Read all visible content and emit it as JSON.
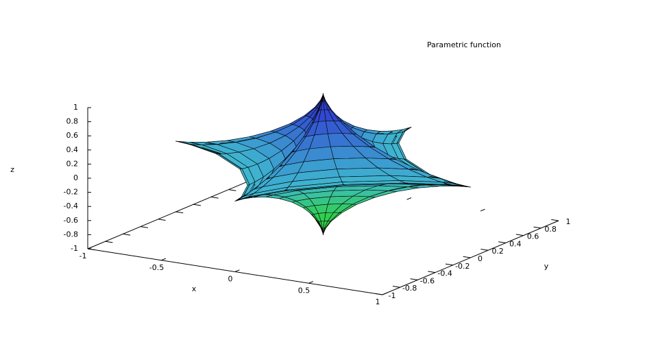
{
  "chart_data": {
    "type": "surface",
    "title": "Parametric function",
    "xlabel": "x",
    "ylabel": "y",
    "zlabel": "z",
    "xlim": [
      -1,
      1
    ],
    "xticks": [
      -1,
      -0.5,
      0,
      0.5,
      1
    ],
    "ylim": [
      -1,
      1
    ],
    "yticks": [
      -1,
      -0.8,
      -0.6,
      -0.4,
      -0.2,
      0,
      0.2,
      0.4,
      0.6,
      0.8,
      1
    ],
    "zlim": [
      -1,
      1
    ],
    "zticks": [
      -1,
      -0.8,
      -0.6,
      -0.4,
      -0.2,
      0,
      0.2,
      0.4,
      0.6,
      0.8,
      1
    ]
  }
}
